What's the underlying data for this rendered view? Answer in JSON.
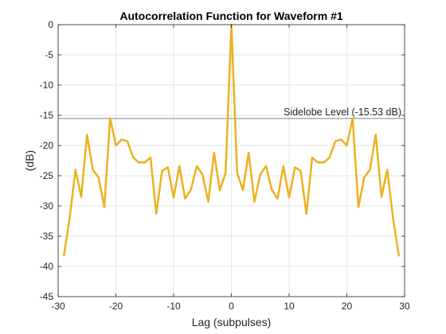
{
  "chart_data": {
    "type": "line",
    "title": "Autocorrelation Function for Waveform #1",
    "xlabel": "Lag (subpulses)",
    "ylabel": "(dB)",
    "xlim": [
      -30,
      30
    ],
    "ylim": [
      -45,
      0
    ],
    "xticks": [
      -30,
      -20,
      -10,
      0,
      10,
      20,
      30
    ],
    "yticks": [
      0,
      -5,
      -10,
      -15,
      -20,
      -25,
      -30,
      -35,
      -40,
      -45
    ],
    "grid": true,
    "series": [
      {
        "color": "#EDB120",
        "x": [
          -29,
          -28,
          -27,
          -26,
          -25,
          -24,
          -23,
          -22,
          -21,
          -20,
          -19,
          -18,
          -17,
          -16,
          -15,
          -14,
          -13,
          -12,
          -11,
          -10,
          -9,
          -8,
          -7,
          -6,
          -5,
          -4,
          -3,
          -2,
          -1,
          0,
          1,
          2,
          3,
          4,
          5,
          6,
          7,
          8,
          9,
          10,
          11,
          12,
          13,
          14,
          15,
          16,
          17,
          18,
          19,
          20,
          21,
          22,
          23,
          24,
          25,
          26,
          27,
          28,
          29
        ],
        "values": [
          -38.2,
          -32.0,
          -24.0,
          -28.5,
          -18.2,
          -24.0,
          -25.3,
          -30.2,
          -15.5,
          -20.0,
          -19.0,
          -19.3,
          -22.0,
          -22.8,
          -22.8,
          -22.0,
          -31.3,
          -24.2,
          -23.6,
          -28.6,
          -23.4,
          -28.8,
          -27.3,
          -23.4,
          -24.8,
          -29.3,
          -21.2,
          -27.4,
          -24.5,
          0.0,
          -24.5,
          -27.4,
          -21.2,
          -29.3,
          -24.8,
          -23.4,
          -27.3,
          -28.8,
          -23.4,
          -28.6,
          -23.6,
          -24.2,
          -31.3,
          -22.0,
          -22.8,
          -22.8,
          -22.0,
          -19.3,
          -19.0,
          -20.0,
          -15.5,
          -30.2,
          -25.3,
          -24.0,
          -18.2,
          -28.5,
          -24.0,
          -32.0,
          -38.2
        ]
      }
    ],
    "reference_line": {
      "y": -15.53,
      "label": "Sidelobe Level (-15.53 dB)",
      "color": "#808080"
    }
  }
}
